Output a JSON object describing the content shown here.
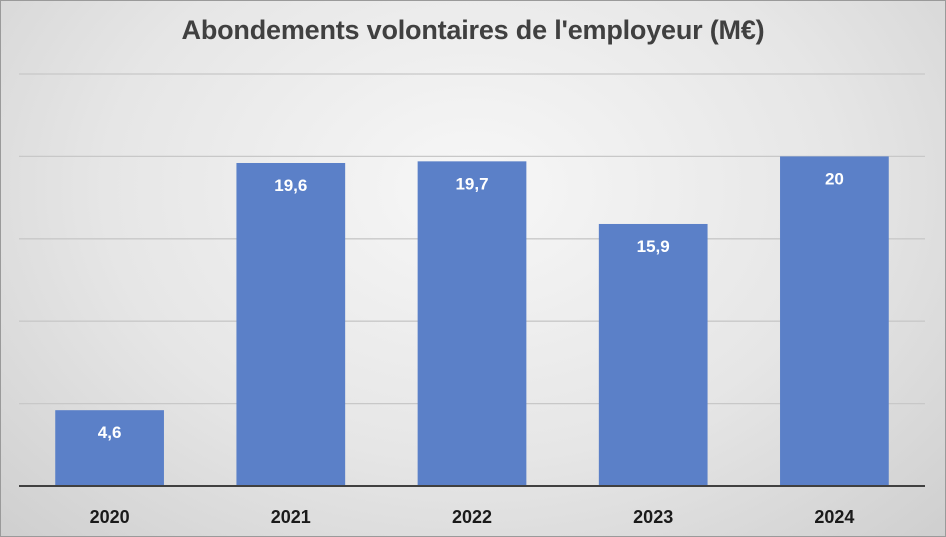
{
  "chart_data": {
    "type": "bar",
    "title": "Abondements volontaires de l'employeur (M€)",
    "categories": [
      "2020",
      "2021",
      "2022",
      "2023",
      "2024"
    ],
    "values": [
      4.6,
      19.6,
      19.7,
      15.9,
      20
    ],
    "value_labels": [
      "4,6",
      "19,6",
      "19,7",
      "15,9",
      "20"
    ],
    "ylim": [
      0,
      25
    ],
    "y_grid_step": 5,
    "grid": true,
    "legend": "none",
    "colors": {
      "bar": "#5b80c8",
      "label": "#ffffff",
      "grid": "#c8c8c8",
      "axis": "#404040",
      "tick_text": "#1a1a1a"
    }
  }
}
